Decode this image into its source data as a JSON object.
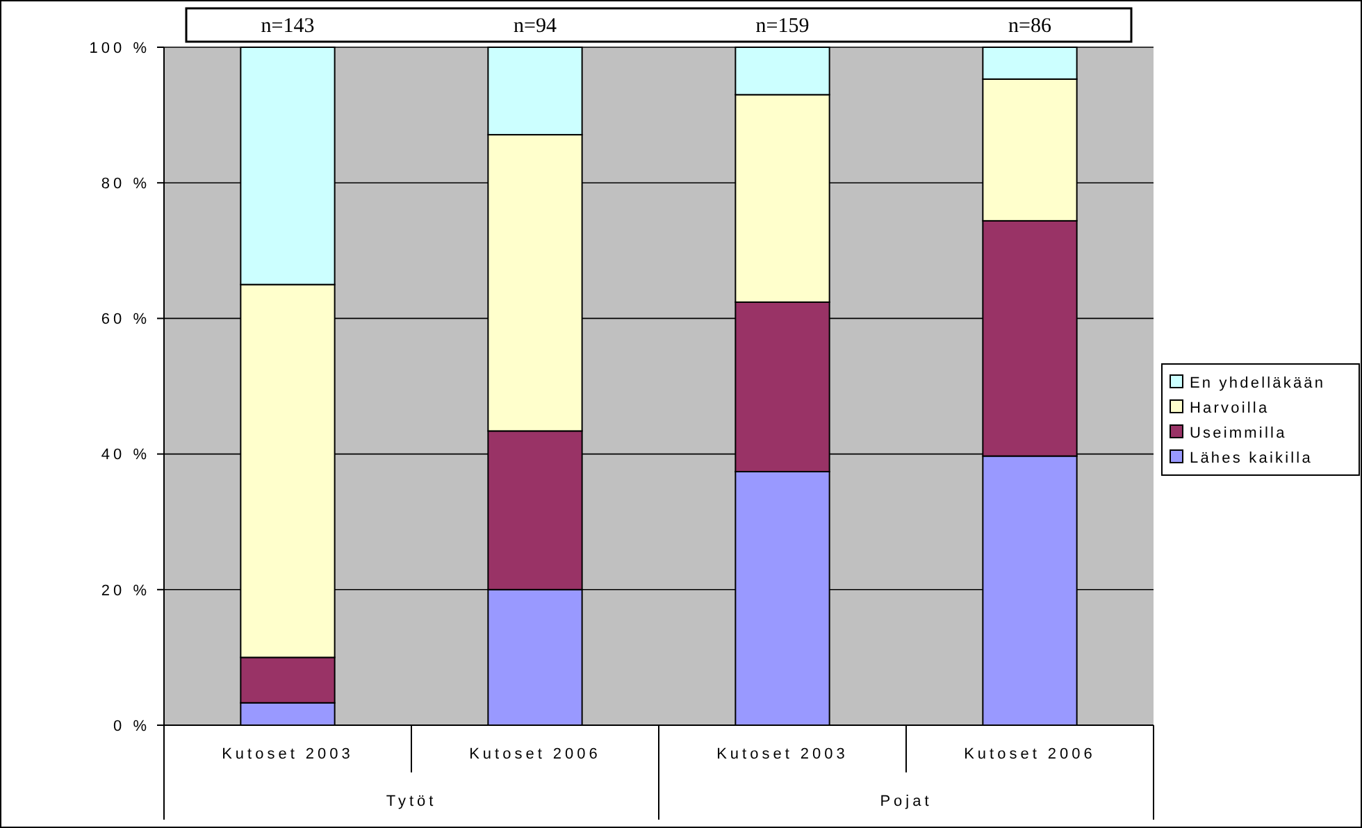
{
  "chart_data": {
    "type": "bar",
    "stacked": true,
    "categories": [
      "Kutoset 2003",
      "Kutoset 2006",
      "Kutoset 2003",
      "Kutoset 2006"
    ],
    "series": [
      {
        "name": "Lähes kaikilla",
        "color": "#9999ff",
        "values": [
          3.3,
          20.0,
          37.4,
          39.7
        ]
      },
      {
        "name": "Useimmilla",
        "color": "#993366",
        "values": [
          6.7,
          23.4,
          25.0,
          34.7
        ]
      },
      {
        "name": "Harvoilla",
        "color": "#ffffcc",
        "values": [
          55.0,
          43.7,
          30.6,
          20.9
        ]
      },
      {
        "name": "En yhdelläkään",
        "color": "#ccffff",
        "values": [
          35.0,
          12.9,
          7.0,
          4.7
        ]
      }
    ],
    "ylim": [
      0,
      100
    ],
    "yticks": [
      {
        "value": 0,
        "label": "0 %"
      },
      {
        "value": 20,
        "label": "20 %"
      },
      {
        "value": 40,
        "label": "40 %"
      },
      {
        "value": 60,
        "label": "60 %"
      },
      {
        "value": 80,
        "label": "80 %"
      },
      {
        "value": 100,
        "label": "100 %"
      }
    ],
    "grid": "y",
    "legend": "right",
    "annotations": [
      "n=143",
      "n=94",
      "n=159",
      "n=86",
      "Tytöt",
      "Pojat"
    ]
  }
}
